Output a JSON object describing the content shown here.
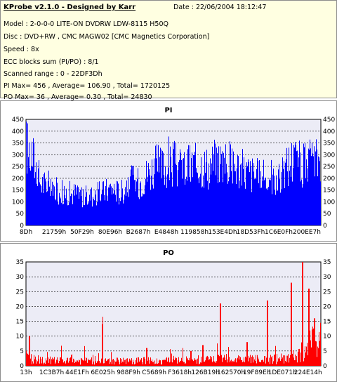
{
  "info": {
    "title": "KProbe v2.1.0 - Designed by Karr",
    "date": "Date : 22/06/2004 18:12:47",
    "lines": [
      "Model : 2-0-0-0 LITE-ON DVDRW LDW-8115   H50Q",
      "Disc : DVD+RW , CMC MAGW02 [CMC Magnetics Corporation]",
      "Speed : 8x",
      "ECC blocks sum (PI/PO) : 8/1",
      "Scanned range : 0 - 22DF3Dh",
      "PI Max= 456 , Average= 106.90 , Total= 1720125",
      "PO Max= 36 , Average= 0.30 , Total= 24830"
    ]
  },
  "colors": {
    "background": "#ffffe1",
    "plot_bg": "#ececf6",
    "pi": "#0000ff",
    "po": "#ff0000"
  },
  "chart_data": [
    {
      "type": "bar",
      "title": "PI",
      "ylim": [
        0,
        450
      ],
      "yticks": [
        0,
        50,
        100,
        150,
        200,
        250,
        300,
        350,
        400,
        450
      ],
      "xtick_labels": [
        "8Dh",
        "21759h",
        "50F29h",
        "80E96h",
        "B2687h",
        "E4848h",
        "119858h",
        "153E4Dh",
        "18D53Fh",
        "1C6E0Fh",
        "200EE7h"
      ],
      "grid": true,
      "profile": [
        [
          0,
          370
        ],
        [
          2,
          330
        ],
        [
          5,
          200
        ],
        [
          8,
          175
        ],
        [
          11,
          160
        ],
        [
          14,
          150
        ],
        [
          17,
          150
        ],
        [
          20,
          135
        ],
        [
          23,
          140
        ],
        [
          26,
          155
        ],
        [
          29,
          175
        ],
        [
          32,
          150
        ],
        [
          35,
          210
        ],
        [
          38,
          195
        ],
        [
          41,
          240
        ],
        [
          44,
          275
        ],
        [
          47,
          270
        ],
        [
          50,
          285
        ],
        [
          53,
          265
        ],
        [
          56,
          280
        ],
        [
          59,
          290
        ],
        [
          62,
          270
        ],
        [
          65,
          310
        ],
        [
          68,
          295
        ],
        [
          71,
          280
        ],
        [
          74,
          255
        ],
        [
          77,
          240
        ],
        [
          80,
          215
        ],
        [
          83,
          235
        ],
        [
          85,
          185
        ],
        [
          87,
          240
        ],
        [
          90,
          305
        ],
        [
          93,
          290
        ],
        [
          96,
          265
        ],
        [
          100,
          325
        ]
      ],
      "max": 456
    },
    {
      "type": "bar",
      "title": "PO",
      "ylim": [
        0,
        35
      ],
      "yticks": [
        0,
        5,
        10,
        15,
        20,
        25,
        30,
        35
      ],
      "xtick_labels": [
        "13h",
        "1C3B7h",
        "44E1Fh",
        "6E025h",
        "988F9h",
        "C5689h",
        "F3618h",
        "126B19h",
        "162570h",
        "19F89Eh",
        "1DE071h",
        "224E14h"
      ],
      "grid": true,
      "profile": [
        [
          0,
          3
        ],
        [
          10,
          2
        ],
        [
          20,
          2
        ],
        [
          30,
          2
        ],
        [
          40,
          2
        ],
        [
          50,
          2
        ],
        [
          60,
          2.5
        ],
        [
          70,
          3
        ],
        [
          80,
          2.5
        ],
        [
          90,
          3
        ],
        [
          94,
          6
        ],
        [
          97,
          9
        ],
        [
          100,
          10
        ]
      ],
      "spikes": [
        [
          1,
          10
        ],
        [
          26,
          14
        ],
        [
          41,
          6
        ],
        [
          56,
          5
        ],
        [
          60,
          7
        ],
        [
          66,
          21
        ],
        [
          75,
          8
        ],
        [
          82,
          22
        ],
        [
          90,
          28
        ],
        [
          94,
          36
        ],
        [
          96,
          26
        ],
        [
          98,
          16
        ]
      ],
      "max": 36
    }
  ]
}
